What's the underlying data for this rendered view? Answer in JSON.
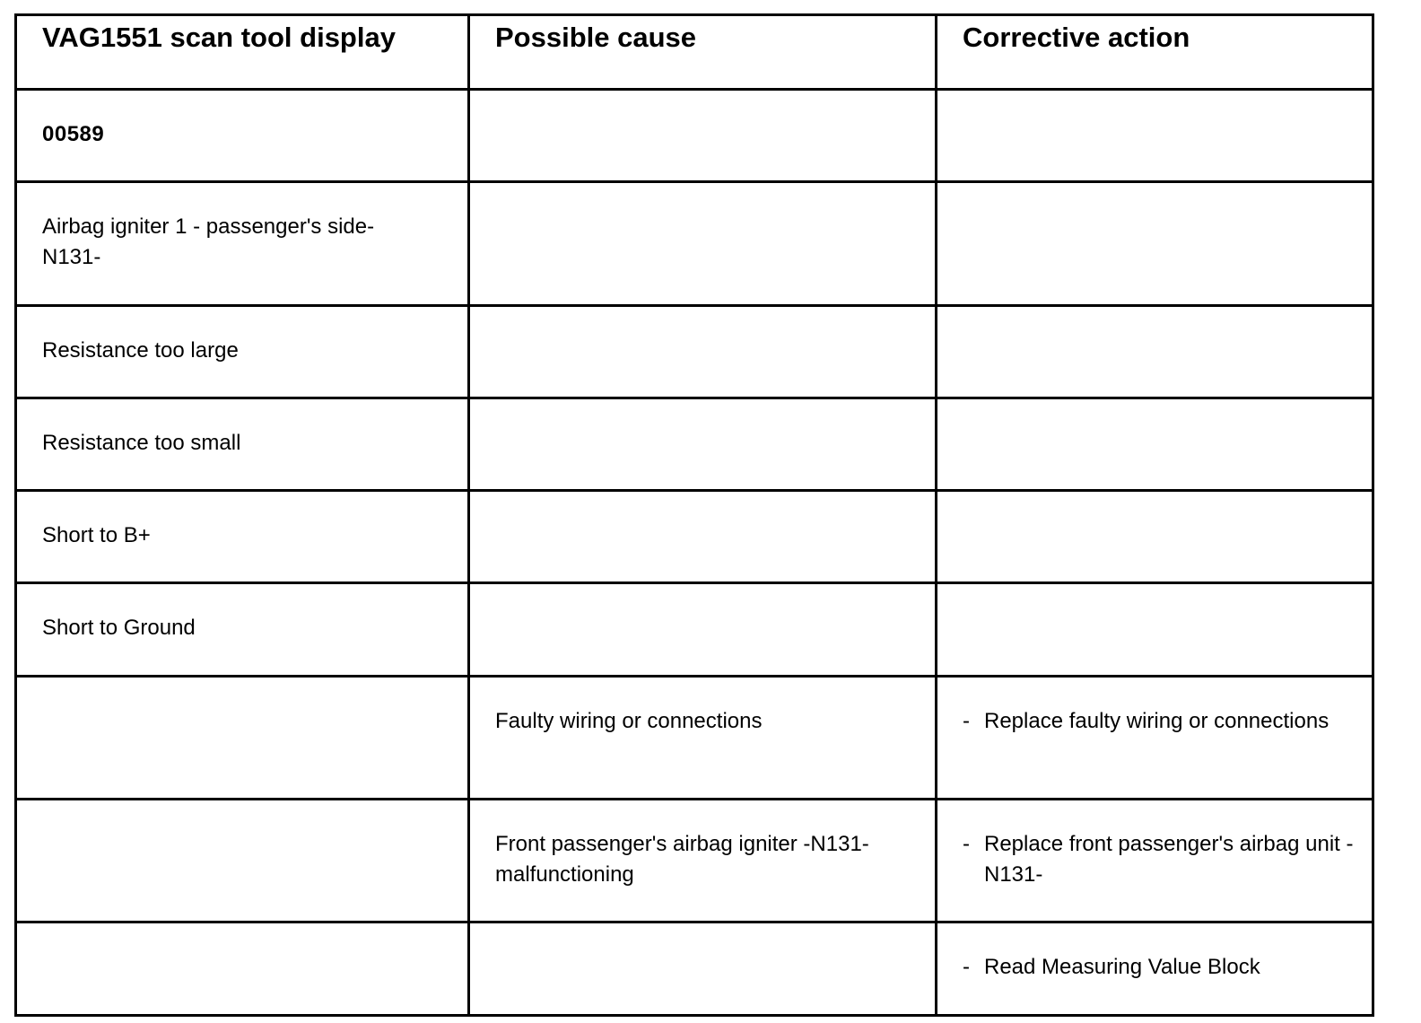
{
  "table": {
    "headers": [
      "VAG1551 scan tool display",
      "Possible cause",
      "Corrective action"
    ],
    "rows": [
      {
        "display": "00589",
        "cause": "",
        "action": ""
      },
      {
        "display": "Airbag igniter 1 - passenger's side-N131-",
        "cause": "",
        "action": ""
      },
      {
        "display": "Resistance too large",
        "cause": "",
        "action": ""
      },
      {
        "display": "Resistance too small",
        "cause": "",
        "action": ""
      },
      {
        "display": "Short to B+",
        "cause": "",
        "action": ""
      },
      {
        "display": "Short to Ground",
        "cause": "",
        "action": ""
      },
      {
        "display": "",
        "cause": "Faulty wiring or connections",
        "action": "Replace faulty wiring or connections"
      },
      {
        "display": "",
        "cause": "Front passenger's airbag igniter -N131- malfunctioning",
        "action": "Replace front passenger's airbag unit -N131-"
      },
      {
        "display": "",
        "cause": "",
        "action": "Read Measuring Value Block"
      }
    ],
    "bullet": "-"
  }
}
